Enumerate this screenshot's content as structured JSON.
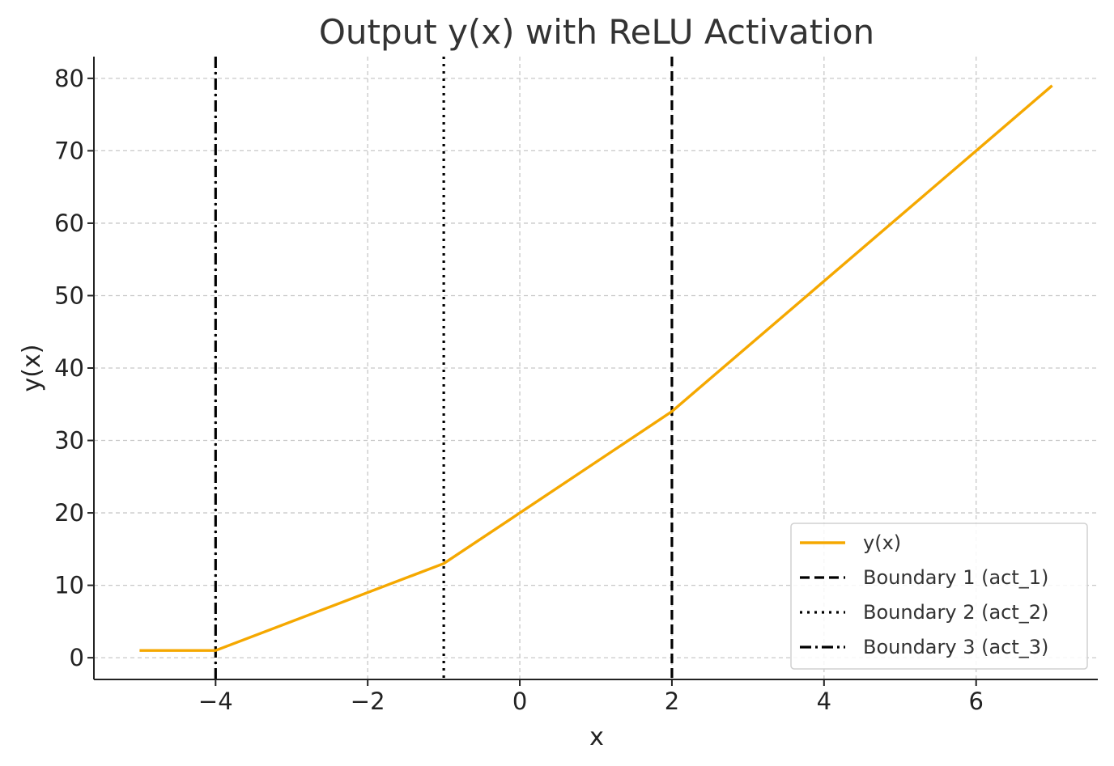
{
  "chart_data": {
    "type": "line",
    "title": "Output y(x) with ReLU Activation",
    "xlabel": "x",
    "ylabel": "y(x)",
    "xlim": [
      -5.6,
      7.6
    ],
    "ylim": [
      -3,
      83
    ],
    "xticks": [
      -4,
      -2,
      0,
      2,
      4,
      6
    ],
    "xtick_labels": [
      "−4",
      "−2",
      "0",
      "2",
      "4",
      "6"
    ],
    "yticks": [
      0,
      10,
      20,
      30,
      40,
      50,
      60,
      70,
      80
    ],
    "ytick_labels": [
      "0",
      "10",
      "20",
      "30",
      "40",
      "50",
      "60",
      "70",
      "80"
    ],
    "grid": true,
    "legend_position": "lower-right",
    "series": [
      {
        "name": "y(x)",
        "color": "#F5A800",
        "x": [
          -5,
          -4,
          -1,
          0,
          2,
          4,
          6,
          7
        ],
        "y": [
          1,
          1,
          13,
          20,
          34,
          52,
          70,
          79
        ]
      }
    ],
    "boundaries": [
      {
        "name": "Boundary 1 (act_1)",
        "x": 2,
        "style": "dashed",
        "color": "#000000"
      },
      {
        "name": "Boundary 2 (act_2)",
        "x": -1,
        "style": "dotted",
        "color": "#000000"
      },
      {
        "name": "Boundary 3 (act_3)",
        "x": -4,
        "style": "dashdot",
        "color": "#000000"
      }
    ]
  }
}
